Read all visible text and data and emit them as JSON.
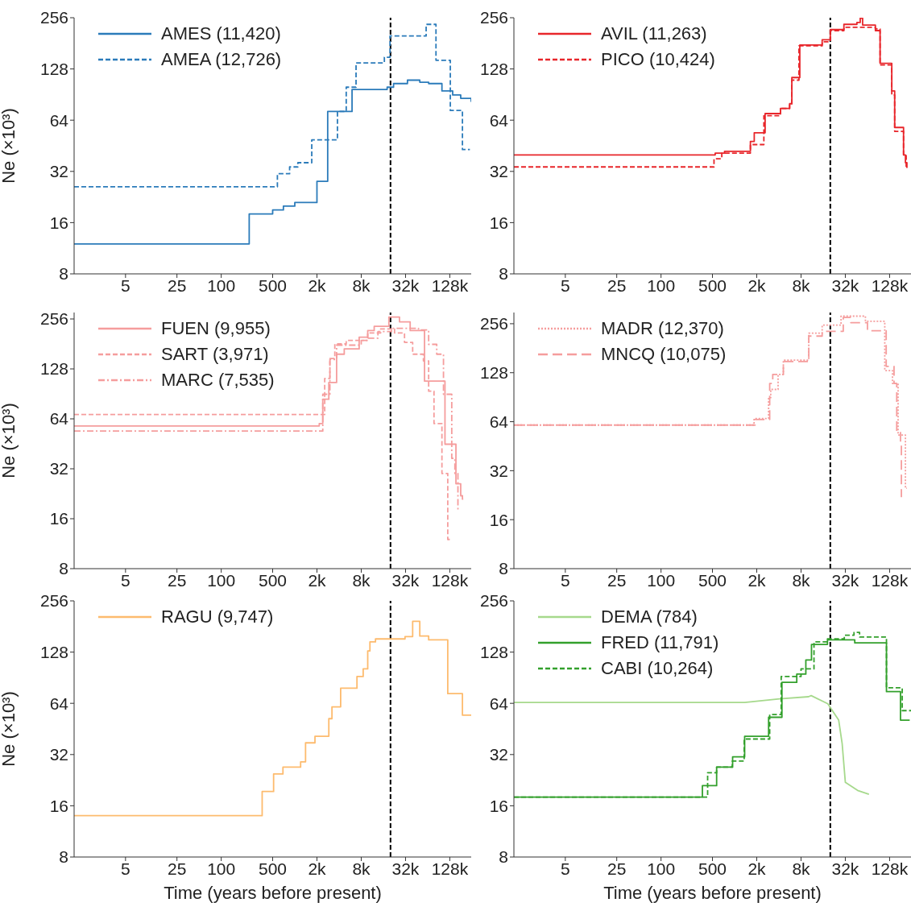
{
  "chart_data": [
    {
      "type": "step",
      "ylabel": "Ne (×10³)",
      "xlim": [
        1,
        250000
      ],
      "ylim": [
        8,
        256
      ],
      "log": "xy",
      "legend": "top left",
      "marker": "none",
      "xticks": [
        5,
        25,
        100,
        500,
        {
          "value": 2000,
          "label": "2k"
        },
        {
          "value": 8000,
          "label": "8k"
        },
        {
          "value": 32000,
          "label": "32k"
        },
        {
          "value": 128000,
          "label": "128k"
        }
      ],
      "yticks": [
        8,
        16,
        32,
        64,
        128,
        256
      ],
      "ref_lines": [
        {
          "axis": "x",
          "value": 20000,
          "color": "#000000",
          "line_style": "dashed"
        }
      ],
      "series": [
        {
          "name": "AMES (11,420)",
          "color": "#2b7bba",
          "line_style": "solid",
          "x": [
            1,
            240,
            500,
            700,
            1000,
            2000,
            2800,
            6000,
            18000,
            22000,
            34000,
            50000,
            66000,
            100000,
            140000,
            180000,
            250000
          ],
          "values": [
            12,
            18,
            19,
            20,
            21,
            28,
            72,
            97,
            100,
            105,
            110,
            107,
            105,
            95,
            90,
            86,
            82
          ]
        },
        {
          "name": "AMEA (12,726)",
          "color": "#2b7bba",
          "line_style": "dashed",
          "x": [
            1,
            580,
            850,
            1100,
            1700,
            3800,
            5000,
            6800,
            16500,
            19700,
            61000,
            83000,
            130000,
            190000,
            240000
          ],
          "values": [
            26,
            31,
            34,
            36,
            49,
            72,
            100,
            139,
            150,
            200,
            234,
            144,
            73,
            43,
            43
          ]
        }
      ]
    },
    {
      "type": "step",
      "xlim": [
        1,
        250000
      ],
      "ylim": [
        8,
        256
      ],
      "log": "xy",
      "legend": "top left",
      "marker": "none",
      "xticks": [
        5,
        25,
        100,
        500,
        {
          "value": 2000,
          "label": "2k"
        },
        {
          "value": 8000,
          "label": "8k"
        },
        {
          "value": 32000,
          "label": "32k"
        },
        {
          "value": 128000,
          "label": "128k"
        }
      ],
      "yticks": [
        8,
        16,
        32,
        64,
        128,
        256
      ],
      "ref_lines": [
        {
          "axis": "x",
          "value": 20000,
          "color": "#000000",
          "line_style": "dashed"
        }
      ],
      "series": [
        {
          "name": "AVIL (11,263)",
          "color": "#e8262b",
          "line_style": "solid",
          "x": [
            1,
            545,
            730,
            1640,
            1850,
            2600,
            4200,
            5600,
            6000,
            7700,
            15500,
            20000,
            30600,
            46000,
            51000,
            55000,
            82000,
            95000,
            137000,
            150000,
            198000,
            210000,
            220000
          ],
          "values": [
            40,
            41,
            42,
            48,
            54,
            70,
            75,
            80,
            114,
            177,
            190,
            218,
            234,
            240,
            254,
            232,
            215,
            138,
            95,
            58,
            40,
            36,
            33.5
          ]
        },
        {
          "name": "PICO (10,424)",
          "color": "#e8262b",
          "line_style": "dashed",
          "x": [
            1,
            525,
            670,
            1640,
            2500,
            4200,
            5600,
            6000,
            7500,
            15500,
            20000,
            30600,
            82000,
            95000,
            137000,
            150000,
            198000,
            215000
          ],
          "values": [
            34,
            38,
            41,
            46,
            68,
            75,
            80,
            110,
            175,
            185,
            215,
            225,
            220,
            135,
            90,
            55,
            40,
            34
          ]
        }
      ]
    },
    {
      "type": "step",
      "ylabel": "Ne (×10³)",
      "xlim": [
        1,
        250000
      ],
      "ylim": [
        8,
        280
      ],
      "log": "xy",
      "legend": "top left",
      "marker": "none",
      "xticks": [
        5,
        25,
        100,
        500,
        {
          "value": 2000,
          "label": "2k"
        },
        {
          "value": 8000,
          "label": "8k"
        },
        {
          "value": 32000,
          "label": "32k"
        },
        {
          "value": 128000,
          "label": "128k"
        }
      ],
      "yticks": [
        8,
        16,
        32,
        64,
        128,
        256
      ],
      "ref_lines": [
        {
          "axis": "x",
          "value": 20000,
          "color": "#000000",
          "line_style": "dashed"
        }
      ],
      "series": [
        {
          "name": "FUEN (9,955)",
          "color": "#f59d9d",
          "line_style": "solid",
          "x": [
            1,
            2150,
            2400,
            2900,
            3700,
            4700,
            7500,
            9800,
            12000,
            19000,
            26500,
            37000,
            58000,
            110000,
            155000,
            180000,
            190000,
            195000
          ],
          "values": [
            58,
            60,
            84,
            106,
            157,
            169,
            199,
            218,
            231,
            263,
            246,
            218,
            108,
            45,
            26,
            22,
            21,
            21
          ]
        },
        {
          "name": "SART (3,971)",
          "color": "#f59d9d",
          "line_style": "dashed",
          "x": [
            1,
            2550,
            3000,
            3500,
            5000,
            9800,
            14700,
            22700,
            31000,
            40000,
            56000,
            66000,
            78000,
            100000,
            120000,
            136000
          ],
          "values": [
            68,
            112,
            148,
            181,
            190,
            211,
            223,
            211,
            185,
            157,
            143,
            94,
            60,
            30,
            12,
            12
          ]
        },
        {
          "name": "MARC (7,535)",
          "color": "#f59d9d",
          "line_style": "dashdot",
          "x": [
            1,
            2400,
            3000,
            3700,
            8000,
            9800,
            13500,
            20600,
            48000,
            66000,
            85000,
            105000,
            136000,
            150000,
            165000
          ],
          "values": [
            54,
            90,
            146,
            178,
            190,
            196,
            215,
            225,
            220,
            180,
            157,
            90,
            37,
            30,
            18
          ]
        }
      ]
    },
    {
      "type": "step",
      "xlim": [
        1,
        250000
      ],
      "ylim": [
        8,
        300
      ],
      "log": "xy",
      "legend": "top left",
      "marker": "none",
      "xticks": [
        5,
        25,
        100,
        500,
        {
          "value": 2000,
          "label": "2k"
        },
        {
          "value": 8000,
          "label": "8k"
        },
        {
          "value": 32000,
          "label": "32k"
        },
        {
          "value": 128000,
          "label": "128k"
        }
      ],
      "yticks": [
        8,
        16,
        32,
        64,
        128,
        256
      ],
      "ref_lines": [
        {
          "axis": "x",
          "value": 20000,
          "color": "#000000",
          "line_style": "dashed"
        }
      ],
      "series": [
        {
          "name": "MADR (12,370)",
          "color": "#f59d9d",
          "line_style": "dotted",
          "x": [
            1,
            1840,
            2900,
            3100,
            3900,
            4600,
            10200,
            15500,
            28000,
            60000,
            110000,
            140000,
            167000,
            210000,
            220000
          ],
          "values": [
            61,
            67,
            90,
            101,
            125,
            153,
            224,
            251,
            285,
            265,
            132,
            110,
            53,
            25,
            25
          ]
        },
        {
          "name": "MNCQ (10,075)",
          "color": "#f59d9d",
          "line_style": "longdash",
          "x": [
            1,
            1900,
            3000,
            3300,
            4600,
            10200,
            15500,
            30000,
            38000,
            64000,
            115000,
            147000,
            160000,
            180000,
            185000
          ],
          "values": [
            61,
            66,
            110,
            125,
            150,
            215,
            230,
            280,
            260,
            232,
            140,
            110,
            55,
            47,
            22
          ]
        }
      ]
    },
    {
      "type": "step",
      "ylabel": "Ne (×10³)",
      "xlabel": "Time (years before present)",
      "xlim": [
        1,
        250000
      ],
      "ylim": [
        8,
        256
      ],
      "log": "xy",
      "legend": "top left",
      "marker": "none",
      "xticks": [
        5,
        25,
        100,
        500,
        {
          "value": 2000,
          "label": "2k"
        },
        {
          "value": 8000,
          "label": "8k"
        },
        {
          "value": 32000,
          "label": "32k"
        },
        {
          "value": 128000,
          "label": "128k"
        }
      ],
      "yticks": [
        8,
        16,
        32,
        64,
        128,
        256
      ],
      "ref_lines": [
        {
          "axis": "x",
          "value": 20000,
          "color": "#000000",
          "line_style": "dashed"
        }
      ],
      "series": [
        {
          "name": "RAGU (9,747)",
          "color": "#fdbb6e",
          "line_style": "solid",
          "x": [
            1,
            360,
            515,
            690,
            1200,
            1400,
            1880,
            2900,
            3200,
            4200,
            7000,
            8500,
            9800,
            10500,
            12500,
            31500,
            40000,
            50000,
            66000,
            120000,
            130000,
            190000,
            250000
          ],
          "values": [
            14,
            19.4,
            24.6,
            27,
            29,
            37.5,
            41,
            52,
            61,
            78.5,
            92,
            102,
            130,
            147,
            153,
            158,
            194,
            159,
            151,
            73,
            73,
            54.5,
            54.5
          ]
        }
      ]
    },
    {
      "type": "step",
      "xlabel": "Time (years before present)",
      "xlim": [
        1,
        250000
      ],
      "ylim": [
        8,
        256
      ],
      "log": "xy",
      "legend": "top left",
      "marker": "none",
      "xticks": [
        5,
        25,
        100,
        500,
        {
          "value": 2000,
          "label": "2k"
        },
        {
          "value": 8000,
          "label": "8k"
        },
        {
          "value": 32000,
          "label": "32k"
        },
        {
          "value": 128000,
          "label": "128k"
        }
      ],
      "yticks": [
        8,
        16,
        32,
        64,
        128,
        256
      ],
      "ref_lines": [
        {
          "axis": "x",
          "value": 20000,
          "color": "#000000",
          "line_style": "dashed"
        }
      ],
      "series": [
        {
          "name": "DEMA (784)",
          "type": "line",
          "color": "#a6d98c",
          "line_style": "solid",
          "x": [
            1,
            1370,
            4100,
            10100,
            11000,
            18500,
            26000,
            29000,
            32000,
            47000,
            67000
          ],
          "values": [
            64.7,
            64.7,
            68,
            70,
            71,
            63.6,
            51,
            37,
            22,
            19.7,
            18.7
          ]
        },
        {
          "name": "FRED (11,791)",
          "color": "#33a02c",
          "line_style": "solid",
          "x": [
            1,
            365,
            570,
            940,
            1370,
            2900,
            4400,
            7000,
            9300,
            11100,
            18300,
            43000,
            116000,
            180000,
            240000
          ],
          "values": [
            18,
            21,
            27,
            31,
            41,
            53,
            85,
            95,
            115,
            142,
            151,
            145,
            75,
            51,
            51
          ]
        },
        {
          "name": "CABI (10,264)",
          "color": "#33a02c",
          "line_style": "dashed",
          "x": [
            1,
            430,
            570,
            930,
            1350,
            3000,
            4300,
            8000,
            12000,
            18300,
            31000,
            42000,
            50000,
            116000,
            190000,
            250000
          ],
          "values": [
            18,
            25,
            27,
            29.3,
            39.5,
            55,
            92,
            102,
            147,
            153,
            161,
            167,
            157,
            79,
            58,
            58
          ]
        }
      ]
    }
  ]
}
